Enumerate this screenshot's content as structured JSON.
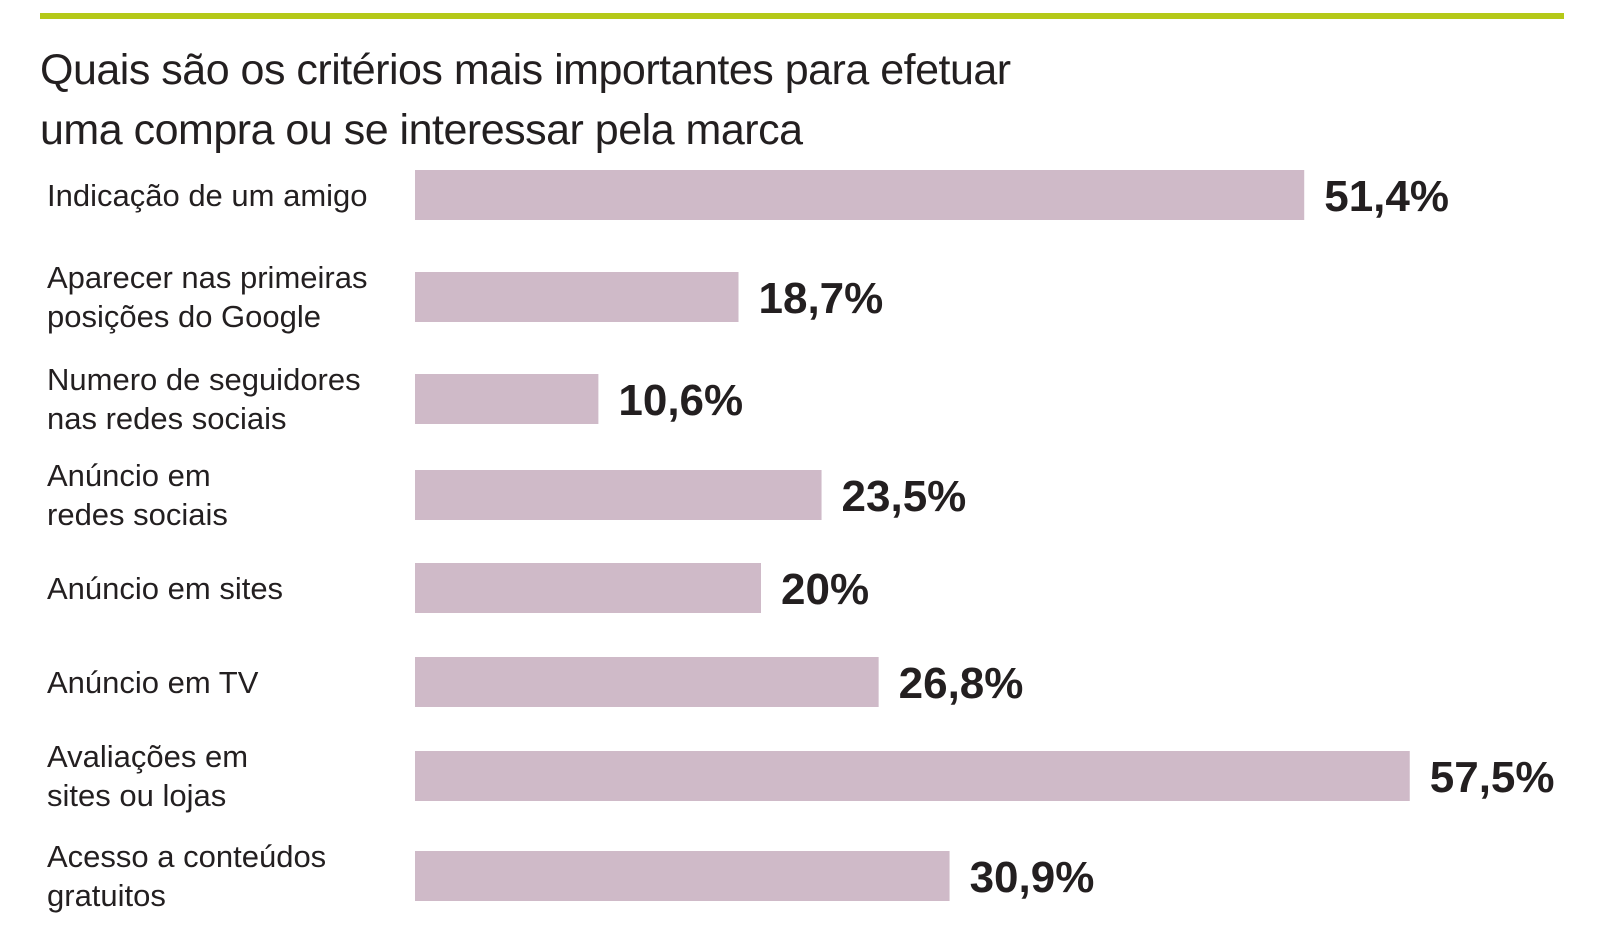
{
  "colors": {
    "accent_rule": "#b5c918",
    "bar": "#cfbac8",
    "text": "#231f20"
  },
  "chart_data": {
    "type": "bar",
    "orientation": "horizontal",
    "title_lines": [
      "Quais são os critérios mais importantes para efetuar",
      "uma compra ou se interessar pela marca"
    ],
    "categories": [
      [
        "Indicação de um amigo"
      ],
      [
        "Aparecer nas primeiras",
        "posições do Google"
      ],
      [
        "Numero de seguidores",
        "nas redes sociais"
      ],
      [
        "Anúncio em",
        "redes sociais"
      ],
      [
        "Anúncio em sites"
      ],
      [
        "Anúncio em TV"
      ],
      [
        "Avaliações em",
        "sites ou lojas"
      ],
      [
        "Acesso a conteúdos",
        "gratuitos"
      ]
    ],
    "values": [
      51.4,
      18.7,
      10.6,
      23.5,
      20,
      26.8,
      57.5,
      30.9
    ],
    "value_labels": [
      "51,4%",
      "18,7%",
      "10,6%",
      "23,5%",
      "20%",
      "26,8%",
      "57,5%",
      "30,9%"
    ],
    "unit": "%",
    "xlim": [
      0,
      60
    ],
    "axes_visible": false,
    "grid": false,
    "legend": "none"
  }
}
